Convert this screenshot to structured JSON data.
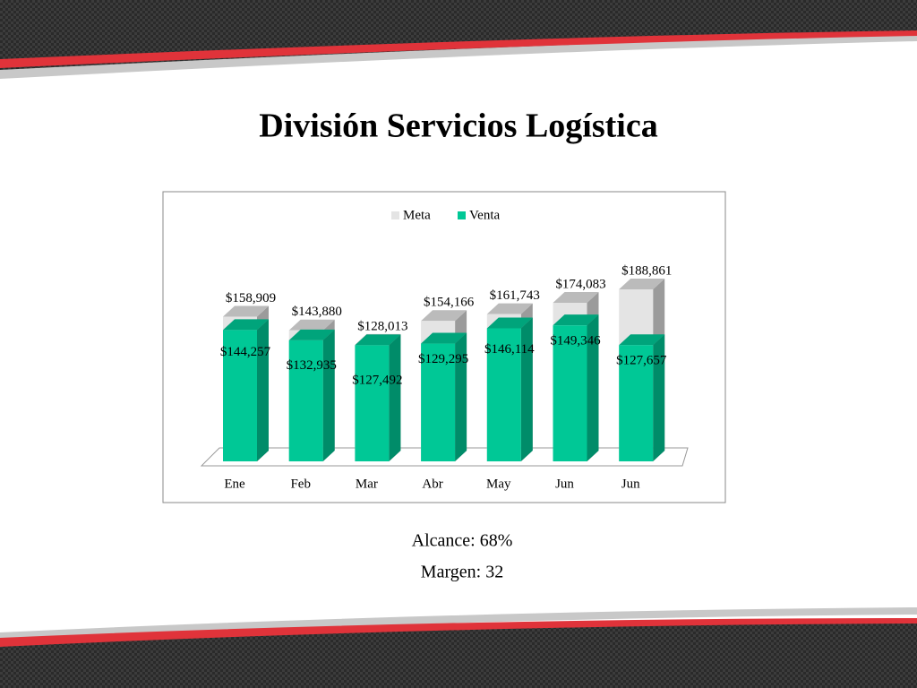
{
  "chart_data": {
    "type": "bar",
    "title": "División Servicios Logística",
    "categories": [
      "Ene",
      "Feb",
      "Mar",
      "Abr",
      "May",
      "Jun",
      "Jun"
    ],
    "series": [
      {
        "name": "Meta",
        "color": "#e4e4e4",
        "values": [
          158909,
          143880,
          128013,
          154166,
          161743,
          174083,
          188861
        ],
        "value_labels": [
          "$158,909",
          "$143,880",
          "$128,013",
          "$154,166",
          "$161,743",
          "$174,083",
          "$188,861"
        ]
      },
      {
        "name": "Venta",
        "color": "#00c896",
        "values": [
          144257,
          132935,
          127492,
          129295,
          146114,
          149346,
          127657
        ],
        "value_labels": [
          "$144,257",
          "$132,935",
          "$127,492",
          "$129,295",
          "$146,114",
          "$149,346",
          "$127,657"
        ]
      }
    ],
    "legend": "top",
    "notes": [
      "Alcance:  68%",
      "Margen: 32"
    ]
  }
}
